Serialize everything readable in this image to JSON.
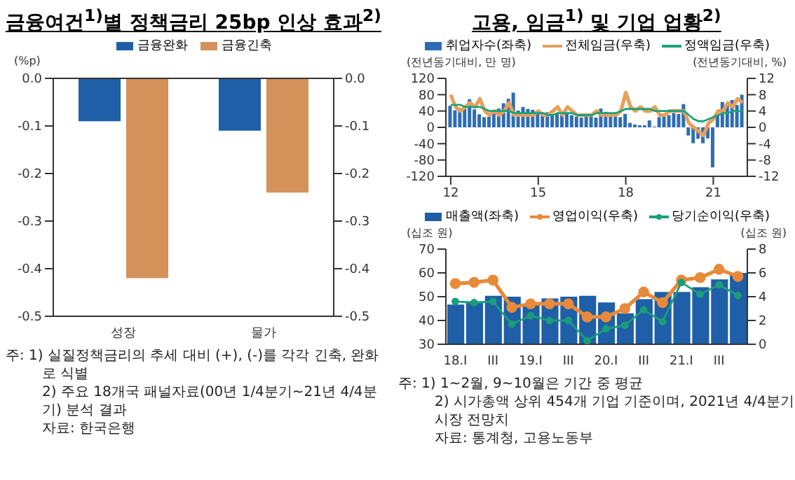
{
  "chart_data": [
    {
      "type": "bar",
      "title": "금융여건$^{1)}$별 정책금리 25bp 인상 효과$^{2)}$",
      "ylabel": "(%p)",
      "categories": [
        "성장",
        "물가"
      ],
      "series": [
        {
          "name": "금융완화",
          "color": "#1f5fa8",
          "values": [
            -0.09,
            -0.11
          ]
        },
        {
          "name": "금융긴축",
          "color": "#d4915a",
          "values": [
            -0.42,
            -0.24
          ]
        }
      ],
      "ylim": [
        -0.5,
        0
      ],
      "yticks": [
        {
          "value": -0.5,
          "label": "-0.5"
        },
        {
          "value": -0.4,
          "label": "-0.4"
        },
        {
          "value": -0.3,
          "label": "-0.3"
        },
        {
          "value": -0.2,
          "label": "-0.2"
        },
        {
          "value": -0.1,
          "label": "-0.1"
        },
        {
          "value": 0,
          "label": "0.0"
        }
      ],
      "y2lim": [
        -0.5,
        0
      ],
      "y2ticks": [
        {
          "value": -0.5,
          "label": "-0.5"
        },
        {
          "value": -0.4,
          "label": "-0.4"
        },
        {
          "value": -0.3,
          "label": "-0.3"
        },
        {
          "value": -0.2,
          "label": "-0.2"
        },
        {
          "value": -0.1,
          "label": "-0.1"
        },
        {
          "value": 0,
          "label": "0.0"
        }
      ],
      "ref_lines": [
        {
          "axis": "y",
          "value": 0
        }
      ],
      "legend": "top",
      "annotations": [
        "주: 1) 실질정책금리의 추세 대비 (+), (-)를 각각 긴축, 완화로 식별",
        "2) 주요 18개국 패널자료(00년 1/4분기~21년 4/4분기) 분석 결과",
        "자료: 한국은행"
      ]
    },
    {
      "type": "bar",
      "title": "고용, 임금$^{1)}$ 및 기업 업황$^{2)}$",
      "ylabel": "(전년동기대비, 만 명)",
      "y2label": "(전년동기대비, %)",
      "x": [
        "2012-01",
        "2012-03",
        "2012-05",
        "2012-07",
        "2012-09",
        "2012-11",
        "2013-01",
        "2013-03",
        "2013-05",
        "2013-07",
        "2013-09",
        "2013-11",
        "2014-01",
        "2014-03",
        "2014-05",
        "2014-07",
        "2014-09",
        "2014-11",
        "2015-01",
        "2015-03",
        "2015-05",
        "2015-07",
        "2015-09",
        "2015-11",
        "2016-01",
        "2016-03",
        "2016-05",
        "2016-07",
        "2016-09",
        "2016-11",
        "2017-01",
        "2017-03",
        "2017-05",
        "2017-07",
        "2017-09",
        "2017-11",
        "2018-01",
        "2018-03",
        "2018-05",
        "2018-07",
        "2018-09",
        "2018-11",
        "2019-01",
        "2019-03",
        "2019-05",
        "2019-07",
        "2019-09",
        "2019-11",
        "2020-01",
        "2020-03",
        "2020-05",
        "2020-07",
        "2020-09",
        "2020-11",
        "2021-01",
        "2021-03",
        "2021-05",
        "2021-07",
        "2021-09",
        "2021-11",
        "2022-01"
      ],
      "series": [
        {
          "name": "취업자수(좌축)",
          "color": "#2e6db4",
          "values": [
            53,
            42,
            47,
            47,
            69,
            44,
            32,
            25,
            26,
            37,
            46,
            59,
            70,
            85,
            41,
            50,
            45,
            43,
            35,
            34,
            37,
            33,
            34,
            34,
            34,
            30,
            26,
            24,
            27,
            26,
            24,
            46,
            38,
            31,
            31,
            25,
            33,
            11,
            7,
            5,
            5,
            17,
            2,
            25,
            26,
            30,
            35,
            33,
            57,
            -20,
            -39,
            -28,
            -39,
            -27,
            -98,
            31,
            62,
            54,
            67,
            55,
            80
          ]
        },
        {
          "name": "전체임금(우축)",
          "type": "line",
          "axis": "y2",
          "color": "#e8a05a",
          "values": [
            8,
            5,
            4,
            5,
            6,
            5,
            7,
            4,
            3,
            4,
            3,
            4,
            6,
            3,
            3,
            3,
            3,
            3,
            4,
            3,
            3,
            4,
            5,
            3,
            5,
            4,
            3,
            3,
            3,
            3,
            4,
            3,
            3,
            3,
            3,
            4,
            8.5,
            5,
            4,
            5,
            4,
            4,
            5,
            3,
            3,
            4,
            4,
            4,
            4,
            1,
            0,
            -1,
            -2,
            1,
            2,
            4,
            4,
            6,
            5,
            7,
            6
          ]
        },
        {
          "name": "정액임금(우축)",
          "type": "line",
          "axis": "y2",
          "color": "#1aa37a",
          "values": [
            5.5,
            5.5,
            5.5,
            5,
            5,
            5,
            5,
            4.5,
            4,
            4,
            4,
            4,
            4,
            3.5,
            3.5,
            3.5,
            3.5,
            3.5,
            3.5,
            3.5,
            3,
            3,
            3.5,
            3.5,
            3.5,
            3.5,
            3,
            3,
            3,
            3,
            3.5,
            3.5,
            3.5,
            3.5,
            3.5,
            4,
            4.5,
            4.5,
            4.5,
            4.5,
            4.5,
            4.5,
            4,
            4,
            4,
            4,
            4,
            4,
            4,
            3,
            2,
            1.5,
            1.5,
            2,
            2.5,
            3,
            3.5,
            3.5,
            4,
            4,
            4
          ]
        }
      ],
      "xlim": [
        "2011-11",
        "2022-03"
      ],
      "xticks": [
        {
          "value": "2012-01",
          "label": "12"
        },
        {
          "value": "2015-01",
          "label": "15"
        },
        {
          "value": "2018-01",
          "label": "18"
        },
        {
          "value": "2021-01",
          "label": "21"
        }
      ],
      "ylim": [
        -120,
        120
      ],
      "yticks": [
        -120,
        -80,
        -40,
        0,
        40,
        80,
        120
      ],
      "y2lim": [
        -12,
        12
      ],
      "y2ticks": [
        -12,
        -8,
        -4,
        0,
        4,
        8,
        12
      ],
      "legend": "top"
    },
    {
      "type": "bar",
      "ylabel": "(십조 원)",
      "y2label": "(십조 원)",
      "categories": [
        "18.I",
        null,
        "III",
        null,
        "19.I",
        null,
        "III",
        null,
        "20.I",
        null,
        "III",
        null,
        "21.I",
        null,
        "III",
        null
      ],
      "series": [
        {
          "name": "매출액(좌축)",
          "color": "#1f5fa8",
          "values": [
            46.7,
            48,
            50.4,
            50,
            46.7,
            49.3,
            50,
            50.4,
            47.6,
            43,
            49,
            52,
            52,
            54,
            57.3,
            60
          ]
        },
        {
          "name": "영업이익(우축)",
          "type": "line",
          "axis": "y2",
          "color": "#e88a3a",
          "values": [
            5.1,
            5.2,
            5.4,
            3.1,
            3.4,
            3.4,
            3.4,
            2.3,
            2.3,
            3.0,
            4.4,
            3.5,
            5.4,
            5.6,
            6.3,
            5.7
          ]
        },
        {
          "name": "당기순이익(우축)",
          "type": "line",
          "axis": "y2",
          "color": "#1a9e7a",
          "values": [
            3.6,
            3.5,
            3.6,
            1.7,
            2.4,
            2.0,
            2.0,
            0.3,
            1.3,
            1.6,
            2.9,
            1.9,
            5.2,
            4.2,
            5.0,
            4.1
          ]
        }
      ],
      "ylim": [
        30,
        70
      ],
      "yticks": [
        30,
        40,
        50,
        60,
        70
      ],
      "y2lim": [
        0,
        8
      ],
      "y2ticks": [
        0,
        2,
        4,
        6,
        8
      ],
      "marker": "circle",
      "legend": "top",
      "annotations": [
        "주: 1) 1~2월, 9~10월은 기간 중 평균",
        "2) 시가총액 상위 454개 기업 기준이며, 2021년 4/4분기 시장 전망치",
        "자료: 통계청, 고용노동부"
      ]
    }
  ]
}
